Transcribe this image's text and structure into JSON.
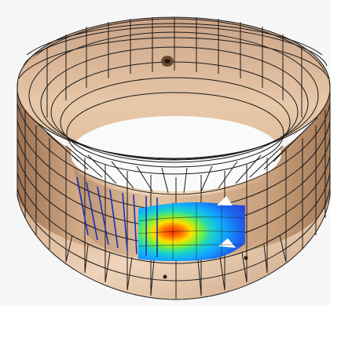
{
  "image": {
    "subject": "bronze-bearing-ring-with-mesh-and-heatmap",
    "colors": {
      "background": "#ffffff",
      "backdrop": "#f4f4f4",
      "bronze_light": "#e8c9a6",
      "bronze_mid": "#c9a07c",
      "bronze_dark": "#8a6346",
      "mesh": "#1a1a1a",
      "inner_line": "#1b2fb8",
      "heat_hot": "#ff3a00",
      "heat_warm": "#ffd400",
      "heat_mid": "#3bdc3b",
      "heat_cool": "#12b6ff",
      "heat_cold": "#1c4fe6"
    },
    "icons": [
      "bolt-hole",
      "dowel-hole"
    ]
  }
}
